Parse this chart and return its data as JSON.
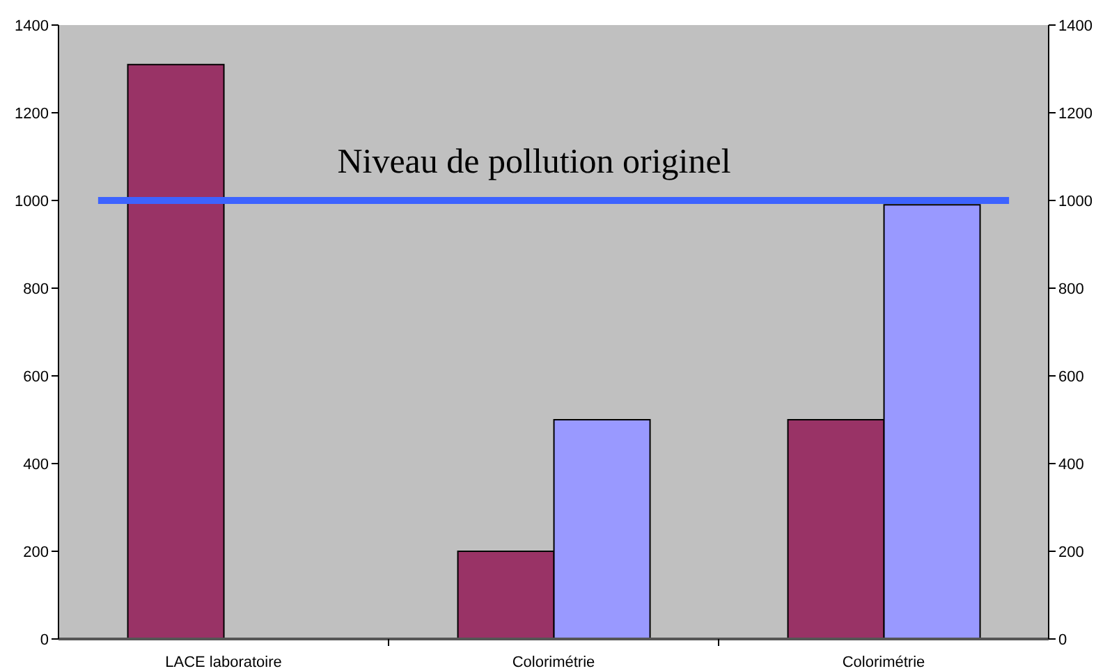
{
  "chart_data": {
    "type": "bar",
    "categories": [
      "LACE laboratoire",
      "Colorimétrie",
      "Colorimétrie"
    ],
    "series": [
      {
        "color": "#993366",
        "values": [
          1310,
          200,
          500
        ]
      },
      {
        "color": "#9999ff",
        "values": [
          null,
          500,
          990
        ]
      }
    ],
    "ylim": [
      0,
      1400
    ],
    "yticks": [
      0,
      200,
      400,
      600,
      800,
      1000,
      1200,
      1400
    ],
    "y2lim": [
      0,
      1400
    ],
    "y2ticks": [
      0,
      200,
      400,
      600,
      800,
      1000,
      1200,
      1400
    ],
    "ref_lines": [
      {
        "axis": "y",
        "value": 1000,
        "label": "Niveau de pollution originel",
        "color": "#3d63ff"
      }
    ]
  }
}
